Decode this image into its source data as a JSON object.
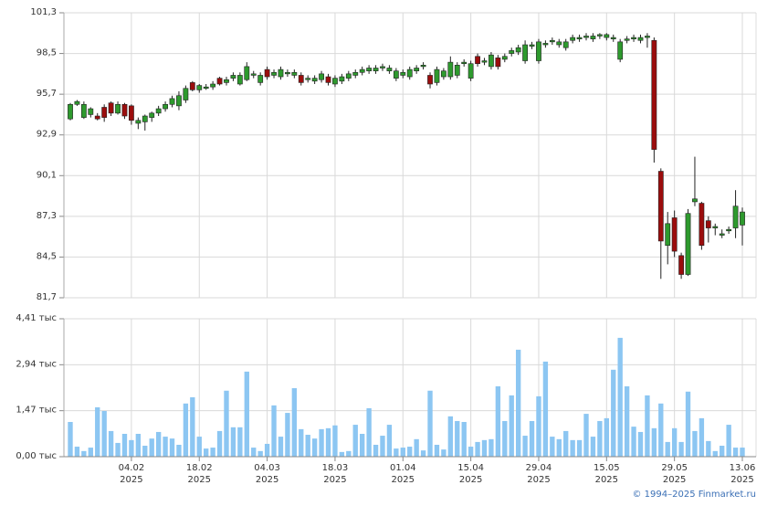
{
  "chart_data": [
    {
      "type": "candlestick",
      "ylim": [
        81.7,
        101.3
      ],
      "yticks": [
        {
          "value": 81.7,
          "label": "81,7"
        },
        {
          "value": 84.5,
          "label": "84,5"
        },
        {
          "value": 87.3,
          "label": "87,3"
        },
        {
          "value": 90.1,
          "label": "90,1"
        },
        {
          "value": 92.9,
          "label": "92,9"
        },
        {
          "value": 95.7,
          "label": "95,7"
        },
        {
          "value": 98.5,
          "label": "98,5"
        },
        {
          "value": 101.3,
          "label": "101,3"
        }
      ],
      "grid": true,
      "up_color": "#2e9a2e",
      "down_color": "#9b0d0d",
      "open": [
        94.0,
        95.0,
        94.1,
        94.3,
        94.2,
        94.8,
        95.1,
        94.4,
        95.0,
        94.9,
        93.7,
        93.8,
        94.1,
        94.4,
        94.7,
        95.0,
        94.9,
        95.3,
        96.5,
        96.0,
        96.1,
        96.2,
        96.8,
        96.5,
        96.8,
        96.4,
        96.7,
        97.0,
        96.5,
        97.4,
        97.0,
        96.9,
        97.1,
        97.0,
        97.0,
        96.7,
        96.6,
        96.7,
        96.9,
        96.4,
        96.6,
        96.8,
        97.0,
        97.2,
        97.3,
        97.3,
        97.5,
        97.3,
        96.8,
        97.0,
        96.9,
        97.3,
        97.6,
        97.0,
        96.5,
        96.9,
        96.9,
        97.0,
        97.8,
        96.8,
        98.3,
        97.9,
        97.6,
        98.2,
        98.1,
        98.5,
        98.6,
        98.0,
        99.0,
        98.0,
        99.1,
        99.3,
        99.1,
        98.9,
        99.4,
        99.5,
        99.6,
        99.5,
        99.7,
        99.6,
        99.5,
        98.1,
        99.4,
        99.5,
        99.4,
        99.6,
        99.4,
        90.4,
        85.3,
        87.2,
        84.6,
        83.3,
        88.3,
        88.2,
        87.0,
        86.5,
        86.0,
        86.3,
        86.5,
        86.7
      ],
      "high": [
        95.1,
        95.3,
        95.2,
        94.8,
        94.4,
        95.0,
        95.2,
        95.2,
        95.1,
        95.0,
        94.1,
        94.3,
        94.5,
        94.9,
        95.2,
        95.6,
        95.9,
        96.3,
        96.6,
        96.4,
        96.4,
        96.6,
        96.9,
        96.9,
        97.2,
        97.2,
        97.9,
        97.3,
        97.2,
        97.6,
        97.4,
        97.6,
        97.4,
        97.4,
        97.2,
        97.0,
        97.0,
        97.3,
        97.1,
        97.0,
        97.1,
        97.3,
        97.4,
        97.6,
        97.7,
        97.7,
        97.8,
        97.7,
        97.5,
        97.4,
        97.6,
        97.7,
        97.9,
        97.2,
        97.6,
        97.5,
        98.3,
        97.9,
        98.1,
        98.0,
        98.5,
        98.2,
        98.6,
        98.4,
        98.5,
        98.9,
        99.1,
        99.4,
        99.3,
        99.5,
        99.4,
        99.6,
        99.5,
        99.5,
        99.8,
        99.8,
        99.9,
        99.9,
        99.9,
        99.9,
        99.8,
        99.5,
        99.7,
        99.8,
        99.8,
        99.9,
        99.6,
        90.6,
        87.6,
        87.7,
        84.8,
        87.8,
        91.4,
        88.3,
        87.3,
        86.8,
        86.4,
        86.6,
        89.1,
        87.9
      ],
      "low": [
        93.9,
        94.9,
        94.0,
        94.1,
        93.9,
        93.8,
        94.2,
        94.3,
        94.0,
        93.6,
        93.3,
        93.2,
        93.8,
        94.2,
        94.5,
        94.8,
        94.6,
        95.1,
        95.9,
        95.8,
        96.0,
        96.0,
        96.3,
        96.3,
        96.6,
        96.3,
        96.6,
        96.8,
        96.3,
        96.7,
        96.8,
        96.7,
        96.9,
        96.8,
        96.3,
        96.5,
        96.4,
        96.5,
        96.3,
        96.2,
        96.4,
        96.6,
        96.8,
        97.0,
        97.1,
        97.1,
        97.3,
        97.1,
        96.6,
        96.8,
        96.7,
        97.1,
        97.4,
        96.1,
        96.3,
        96.7,
        96.7,
        96.8,
        97.6,
        96.6,
        97.6,
        97.7,
        97.4,
        97.4,
        97.9,
        98.3,
        98.4,
        97.8,
        98.8,
        97.8,
        98.9,
        99.1,
        98.9,
        98.7,
        99.2,
        99.3,
        99.4,
        99.3,
        99.5,
        99.4,
        99.3,
        97.9,
        99.2,
        99.3,
        99.2,
        98.9,
        91.0,
        83.0,
        84.0,
        84.5,
        83.0,
        83.2,
        88.0,
        85.0,
        85.5,
        86.0,
        85.8,
        86.1,
        85.8,
        85.3
      ],
      "close": [
        95.0,
        95.2,
        95.0,
        94.7,
        94.0,
        94.1,
        94.4,
        95.0,
        94.2,
        93.9,
        93.9,
        94.2,
        94.4,
        94.7,
        95.0,
        95.4,
        95.6,
        96.1,
        96.0,
        96.3,
        96.2,
        96.4,
        96.4,
        96.7,
        97.0,
        97.0,
        97.6,
        97.1,
        97.0,
        96.9,
        97.2,
        97.4,
        97.2,
        97.2,
        96.5,
        96.8,
        96.8,
        97.1,
        96.5,
        96.8,
        96.9,
        97.1,
        97.2,
        97.4,
        97.5,
        97.5,
        97.6,
        97.5,
        97.3,
        97.2,
        97.4,
        97.5,
        97.7,
        96.4,
        97.4,
        97.3,
        97.9,
        97.7,
        97.9,
        97.8,
        97.8,
        98.0,
        98.4,
        97.6,
        98.3,
        98.7,
        98.9,
        99.1,
        99.1,
        99.3,
        99.2,
        99.4,
        99.3,
        99.3,
        99.6,
        99.6,
        99.7,
        99.7,
        99.8,
        99.8,
        99.6,
        99.3,
        99.5,
        99.6,
        99.6,
        99.7,
        91.9,
        85.6,
        86.8,
        84.9,
        83.3,
        87.5,
        88.5,
        85.3,
        86.5,
        86.6,
        86.1,
        86.4,
        88.0,
        87.6
      ]
    },
    {
      "type": "bar",
      "ylim": [
        0,
        4.41
      ],
      "yticks": [
        {
          "value": 0,
          "label": "0,00 тыс"
        },
        {
          "value": 1.47,
          "label": "1,47 тыс"
        },
        {
          "value": 2.94,
          "label": "2,94 тыс"
        },
        {
          "value": 4.41,
          "label": "4,41 тыс"
        }
      ],
      "grid": true,
      "color": "#8cc6f2",
      "categories": [
        null,
        null,
        null,
        null,
        null,
        null,
        null,
        null,
        null,
        [
          "04.02",
          "2025"
        ],
        null,
        null,
        null,
        null,
        null,
        null,
        null,
        null,
        null,
        [
          "18.02",
          "2025"
        ],
        null,
        null,
        null,
        null,
        null,
        null,
        null,
        null,
        null,
        [
          "04.03",
          "2025"
        ],
        null,
        null,
        null,
        null,
        null,
        null,
        null,
        null,
        null,
        [
          "18.03",
          "2025"
        ],
        null,
        null,
        null,
        null,
        null,
        null,
        null,
        null,
        null,
        [
          "01.04",
          "2025"
        ],
        null,
        null,
        null,
        null,
        null,
        null,
        null,
        null,
        null,
        [
          "15.04",
          "2025"
        ],
        null,
        null,
        null,
        null,
        null,
        null,
        null,
        null,
        null,
        [
          "29.04",
          "2025"
        ],
        null,
        null,
        null,
        null,
        null,
        null,
        null,
        null,
        null,
        [
          "15.05",
          "2025"
        ],
        null,
        null,
        null,
        null,
        null,
        null,
        null,
        null,
        null,
        [
          "29.05",
          "2025"
        ],
        null,
        null,
        null,
        null,
        null,
        null,
        null,
        null,
        null,
        [
          "13.06",
          "2025"
        ]
      ],
      "values": [
        1.11,
        0.32,
        0.18,
        0.29,
        1.58,
        1.46,
        0.82,
        0.44,
        0.73,
        0.53,
        0.73,
        0.35,
        0.58,
        0.79,
        0.64,
        0.58,
        0.38,
        1.7,
        1.9,
        0.64,
        0.26,
        0.29,
        0.82,
        2.11,
        0.94,
        0.94,
        2.72,
        0.29,
        0.18,
        0.41,
        1.64,
        0.64,
        1.4,
        2.19,
        0.88,
        0.7,
        0.58,
        0.88,
        0.91,
        1.0,
        0.15,
        0.18,
        1.02,
        0.73,
        1.55,
        0.38,
        0.67,
        1.02,
        0.26,
        0.29,
        0.32,
        0.56,
        0.2,
        2.11,
        0.38,
        0.23,
        1.29,
        1.14,
        1.11,
        0.32,
        0.47,
        0.53,
        0.56,
        2.25,
        1.14,
        1.96,
        3.42,
        0.67,
        1.14,
        1.93,
        3.04,
        0.64,
        0.56,
        0.82,
        0.53,
        0.53,
        1.37,
        0.64,
        1.14,
        1.23,
        2.78,
        3.8,
        2.25,
        0.96,
        0.79,
        1.96,
        0.91,
        1.7,
        0.47,
        0.91,
        0.47,
        2.08,
        0.82,
        1.23,
        0.5,
        0.18,
        0.35,
        1.02,
        0.29,
        0.29
      ]
    }
  ],
  "footer": "© 1994–2025 Finmarket.ru"
}
